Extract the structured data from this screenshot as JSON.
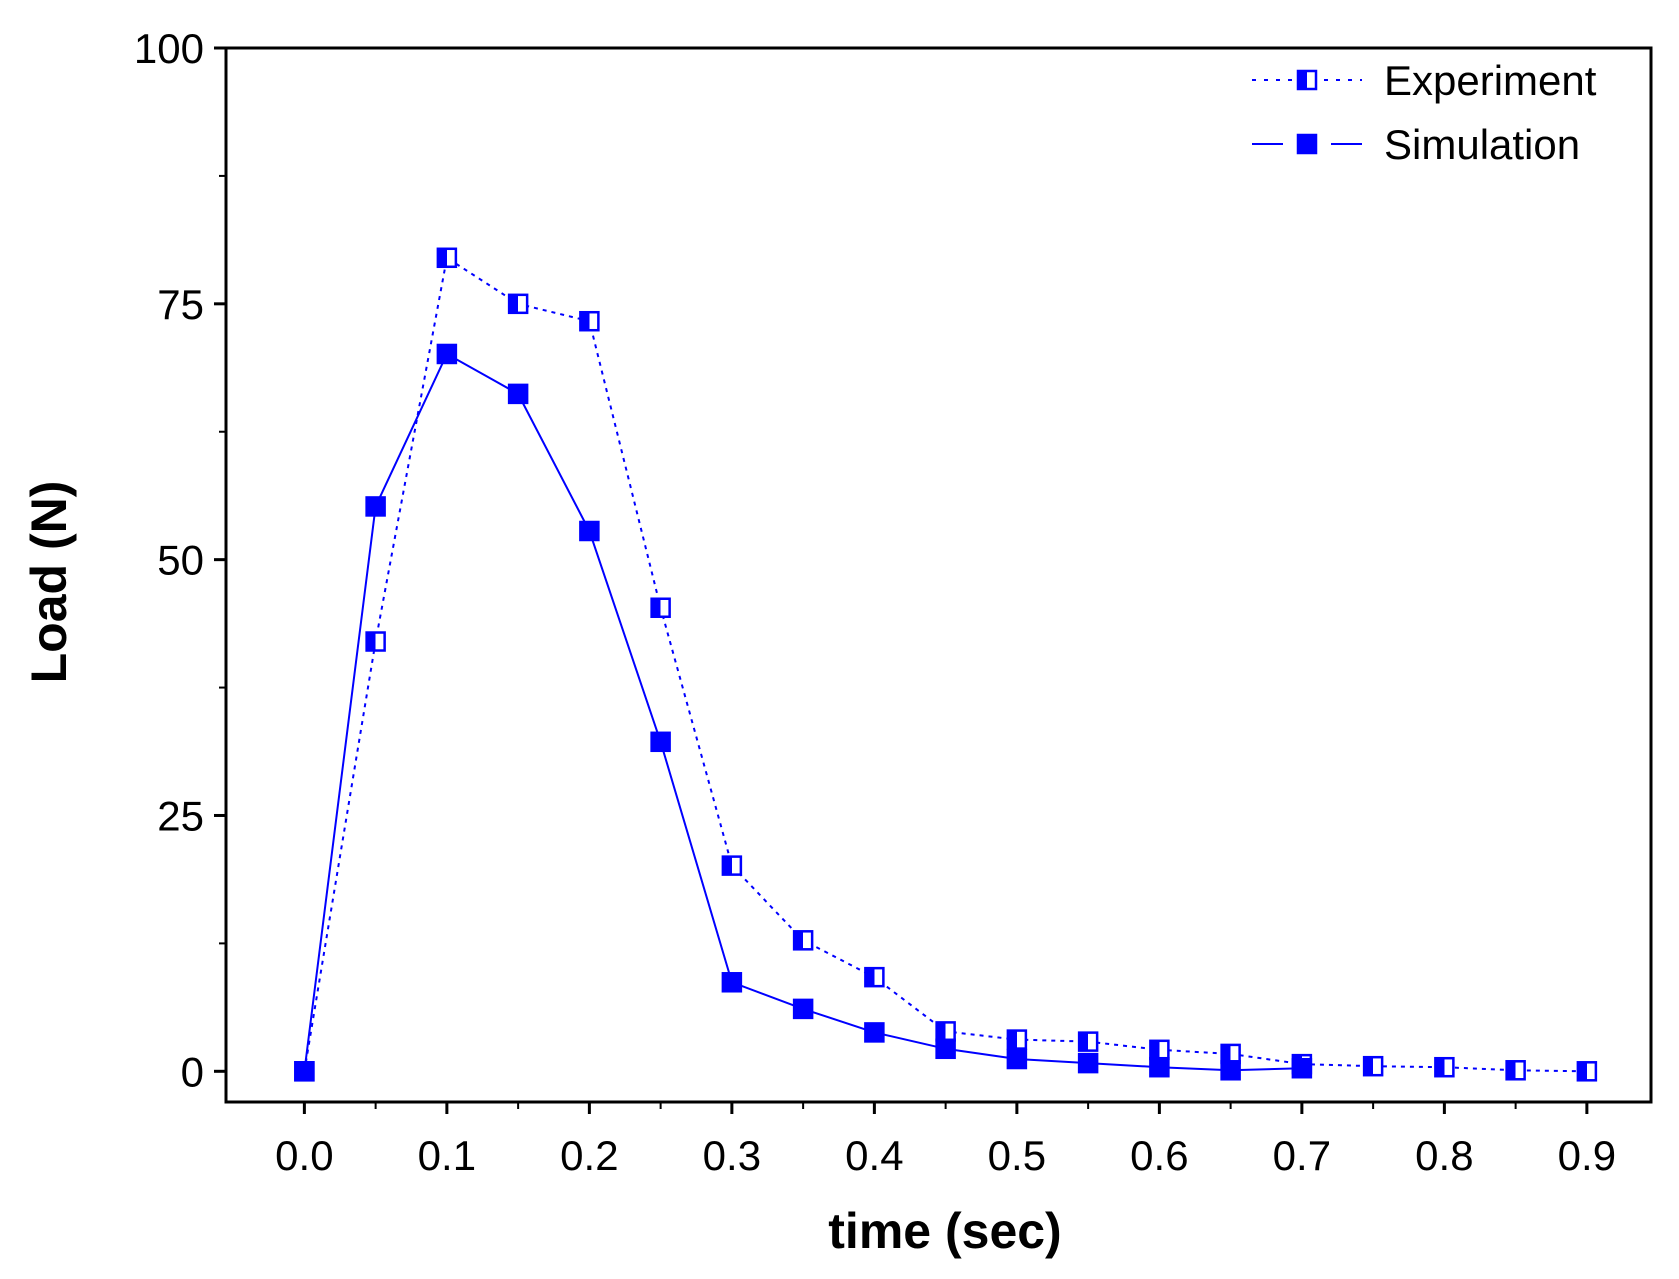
{
  "chart_data": {
    "type": "line",
    "title": "",
    "xlabel": "time (sec)",
    "ylabel": "Load (N)",
    "xlim": [
      -0.055,
      0.945
    ],
    "ylim": [
      -3,
      100
    ],
    "xticks": [
      "0.0",
      "0.1",
      "0.2",
      "0.3",
      "0.4",
      "0.5",
      "0.6",
      "0.7",
      "0.8",
      "0.9"
    ],
    "yticks": [
      "0",
      "25",
      "50",
      "75",
      "100"
    ],
    "grid": false,
    "legend_position": "top-right",
    "series": [
      {
        "name": "Experiment",
        "line": "dotted",
        "marker": "half-filled-square",
        "color": "#0000ff",
        "x": [
          0.0,
          0.05,
          0.1,
          0.15,
          0.2,
          0.25,
          0.3,
          0.35,
          0.4,
          0.45,
          0.5,
          0.55,
          0.6,
          0.65,
          0.7,
          0.75,
          0.8,
          0.85,
          0.9
        ],
        "y": [
          0,
          42,
          79.5,
          75,
          73.3,
          45.3,
          20.1,
          12.8,
          9.2,
          3.9,
          3.1,
          2.9,
          2.1,
          1.7,
          0.7,
          0.5,
          0.4,
          0.1,
          0
        ]
      },
      {
        "name": "Simulation",
        "line": "solid",
        "marker": "filled-square",
        "color": "#0000ff",
        "x": [
          0.0,
          0.05,
          0.1,
          0.15,
          0.2,
          0.25,
          0.3,
          0.35,
          0.4,
          0.45,
          0.5,
          0.55,
          0.6,
          0.65,
          0.7
        ],
        "y": [
          0,
          55.2,
          70.1,
          66.2,
          52.8,
          32.2,
          8.7,
          6.1,
          3.8,
          2.2,
          1.2,
          0.8,
          0.4,
          0.1,
          0.3
        ]
      }
    ]
  }
}
